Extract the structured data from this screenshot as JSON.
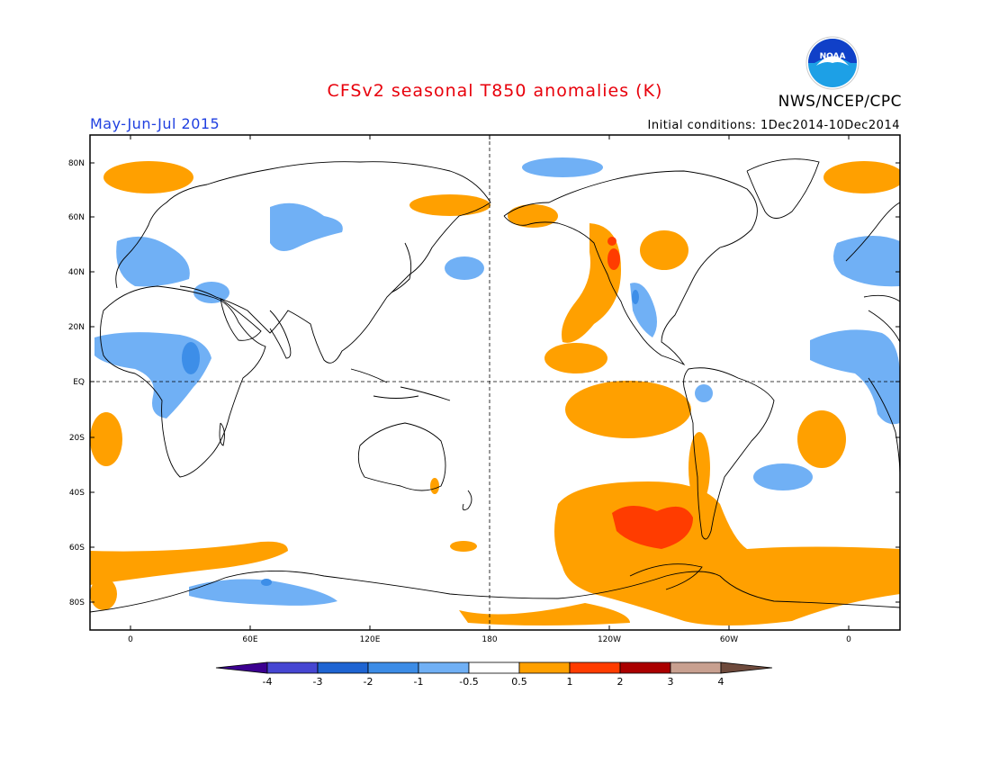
{
  "title": "CFSv2 seasonal T850 anomalies (K)",
  "period": "May-Jun-Jul 2015",
  "initial_conditions": "Initial conditions: 1Dec2014-10Dec2014",
  "organization": "NWS/NCEP/CPC",
  "logo_text": "NOAA",
  "colors": {
    "title": "#e8000b",
    "period": "#1f3fe0",
    "neg1": "#70b0f5",
    "neg2": "#3d8ee8",
    "pos1": "#ffa000",
    "pos2": "#ff3c00",
    "coast": "#000000"
  },
  "lat_labels": [
    "80N",
    "60N",
    "40N",
    "20N",
    "EQ",
    "20S",
    "40S",
    "60S",
    "80S"
  ],
  "lon_labels": [
    "0",
    "60E",
    "120E",
    "180",
    "120W",
    "60W",
    "0"
  ],
  "colorbar": {
    "ticks": [
      "-4",
      "-3",
      "-2",
      "-1",
      "-0.5",
      "0.5",
      "1",
      "2",
      "3",
      "4"
    ],
    "colors": [
      "#3c0090",
      "#4646d2",
      "#1e64d2",
      "#3c8ce6",
      "#70b0f5",
      "#ffffff",
      "#ffa000",
      "#ff3c00",
      "#aa0000",
      "#c8a090",
      "#6e4a3c"
    ]
  }
}
